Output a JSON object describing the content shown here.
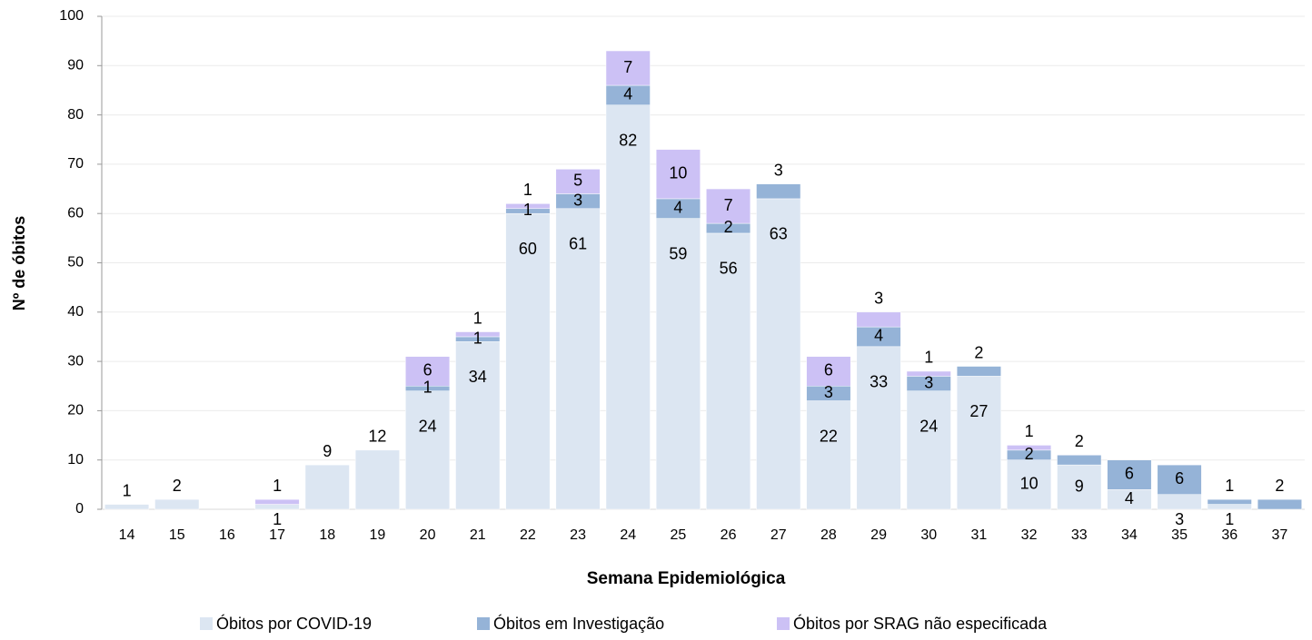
{
  "chart_data": {
    "type": "stacked_bar",
    "x_label": "Semana Epidemiológica",
    "y_label": "Nº de óbitos",
    "categories": [
      14,
      15,
      16,
      17,
      18,
      19,
      20,
      21,
      22,
      23,
      24,
      25,
      26,
      27,
      28,
      29,
      30,
      31,
      32,
      33,
      34,
      35,
      36,
      37
    ],
    "series": [
      {
        "name": "Óbitos por COVID-19",
        "color": "#dce6f2",
        "values": [
          1,
          2,
          null,
          1,
          9,
          12,
          24,
          34,
          60,
          61,
          82,
          59,
          56,
          63,
          22,
          33,
          24,
          27,
          10,
          9,
          4,
          3,
          1,
          null
        ]
      },
      {
        "name": "Óbitos em Investigação",
        "color": "#95b3d7",
        "values": [
          null,
          null,
          null,
          null,
          null,
          null,
          1,
          1,
          1,
          3,
          4,
          4,
          2,
          3,
          3,
          4,
          3,
          2,
          2,
          2,
          6,
          6,
          1,
          2
        ]
      },
      {
        "name": "Óbitos por SRAG não especificada",
        "color": "#ccc1f5",
        "values": [
          null,
          null,
          null,
          1,
          null,
          null,
          6,
          1,
          1,
          5,
          7,
          10,
          7,
          null,
          6,
          3,
          1,
          null,
          1,
          null,
          null,
          null,
          null,
          null
        ]
      }
    ],
    "ylim": [
      0,
      100
    ],
    "yticks": [
      0,
      10,
      20,
      30,
      40,
      50,
      60,
      70,
      80,
      90,
      100
    ],
    "grid": true,
    "legend": "bottom"
  }
}
